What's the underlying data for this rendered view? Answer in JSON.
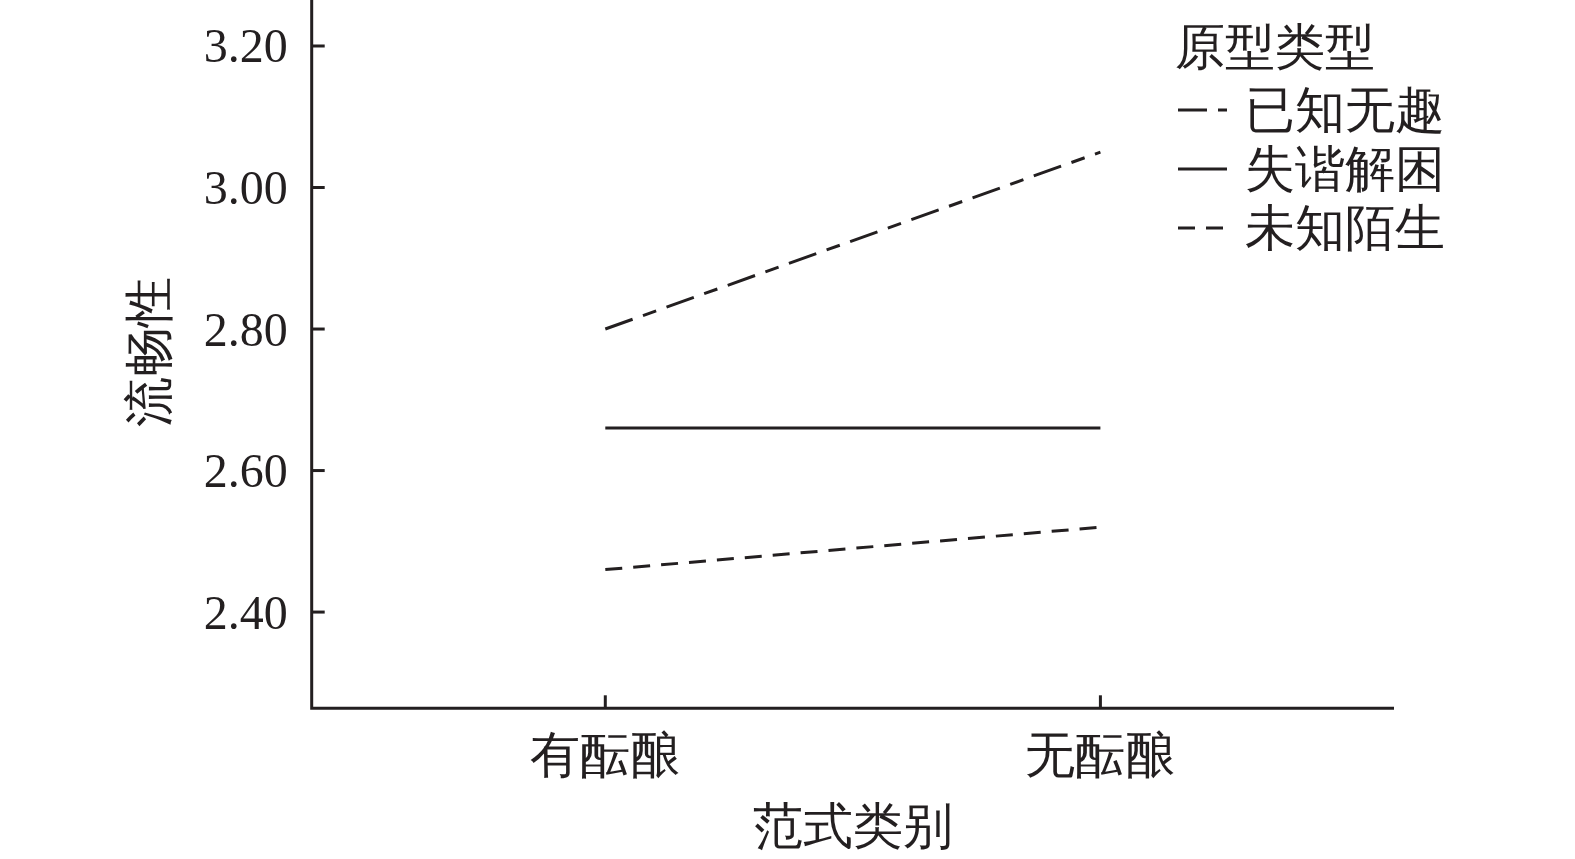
{
  "chart_data": {
    "type": "line",
    "xlabel": "范式类别",
    "ylabel": "流畅性",
    "legend_title": "原型类型",
    "legend": "top right",
    "categories": [
      "有酝酿",
      "无酝酿"
    ],
    "series": [
      {
        "name": "已知无趣",
        "color": "#231f20",
        "line_style": "dashdot",
        "values": [
          2.8,
          3.05
        ]
      },
      {
        "name": "失谐解困",
        "color": "#231f20",
        "line_style": "solid",
        "values": [
          2.66,
          2.66
        ]
      },
      {
        "name": "未知陌生",
        "color": "#231f20",
        "line_style": "dashed",
        "values": [
          2.46,
          2.52
        ]
      }
    ],
    "ylim": [
      2.264,
      3.265
    ],
    "yticks": [
      {
        "value": 2.4,
        "label": "2.40"
      },
      {
        "value": 2.6,
        "label": "2.60"
      },
      {
        "value": 2.8,
        "label": "2.80"
      },
      {
        "value": 3.0,
        "label": "3.00"
      },
      {
        "value": 3.2,
        "label": "3.20"
      }
    ]
  }
}
